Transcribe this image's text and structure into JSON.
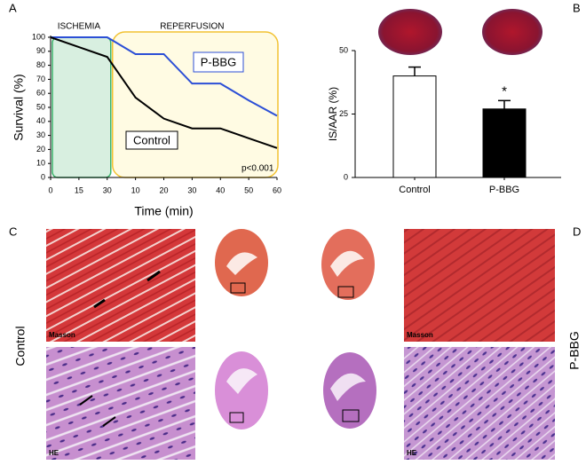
{
  "chart_data": [
    {
      "type": "line",
      "xlabel": "Time (min)",
      "ylabel": "Survival (%)",
      "categories": [
        "0",
        "15",
        "30",
        "10",
        "20",
        "30",
        "40",
        "50",
        "60"
      ],
      "series": [
        {
          "name": "P-BBG",
          "color": "#2c4fd6",
          "values": [
            100,
            100,
            100,
            88,
            88,
            67,
            67,
            55,
            44
          ]
        },
        {
          "name": "Control",
          "color": "#000000",
          "values": [
            100,
            93,
            86,
            57,
            42,
            35,
            35,
            28,
            21
          ]
        }
      ],
      "ylim": [
        0,
        100
      ],
      "yticks": [
        0,
        10,
        20,
        30,
        40,
        50,
        60,
        70,
        80,
        90,
        100
      ],
      "annotations": [
        "ISCHEMIA",
        "REPERFUSION",
        "p<0.001"
      ]
    },
    {
      "type": "bar",
      "ylabel": "IS/AAR (%)",
      "categories": [
        "Control",
        "P-BBG"
      ],
      "values": [
        40,
        27
      ],
      "errors": [
        3.5,
        3.3
      ],
      "colors": [
        "#ffffff",
        "#000000"
      ],
      "ylim": [
        0,
        50
      ],
      "yticks": [
        0,
        25,
        50
      ],
      "annotations": [
        "*"
      ]
    }
  ],
  "panels": {
    "letters": [
      "A",
      "B",
      "C",
      "D"
    ],
    "groups": [
      "Control",
      "P-BBG"
    ],
    "stains": [
      "Masson",
      "HE"
    ]
  }
}
